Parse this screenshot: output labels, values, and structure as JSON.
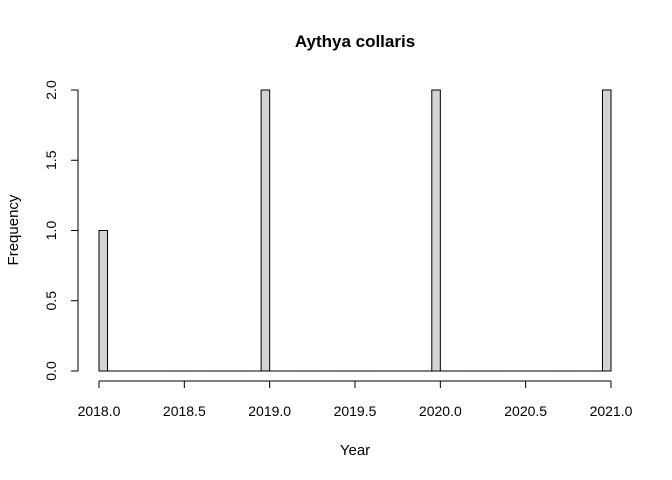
{
  "chart_data": {
    "type": "bar",
    "title": "Aythya collaris",
    "xlabel": "Year",
    "ylabel": "Frequency",
    "xlim": [
      2018.0,
      2021.0
    ],
    "ylim": [
      0,
      2
    ],
    "x_ticks": [
      "2018.0",
      "2018.5",
      "2019.0",
      "2019.5",
      "2020.0",
      "2020.5",
      "2021.0"
    ],
    "y_ticks": [
      "0.0",
      "0.5",
      "1.0",
      "1.5",
      "2.0"
    ],
    "bin_width": 0.05,
    "bins_start": 2018.0,
    "bins": [
      {
        "x0": 2018.0,
        "x1": 2018.05,
        "count": 1
      },
      {
        "x0": 2018.95,
        "x1": 2019.0,
        "count": 2
      },
      {
        "x0": 2019.95,
        "x1": 2020.0,
        "count": 2
      },
      {
        "x0": 2020.95,
        "x1": 2021.0,
        "count": 2
      }
    ],
    "bar_fill": "#d3d3d3",
    "bar_stroke": "#000000"
  }
}
